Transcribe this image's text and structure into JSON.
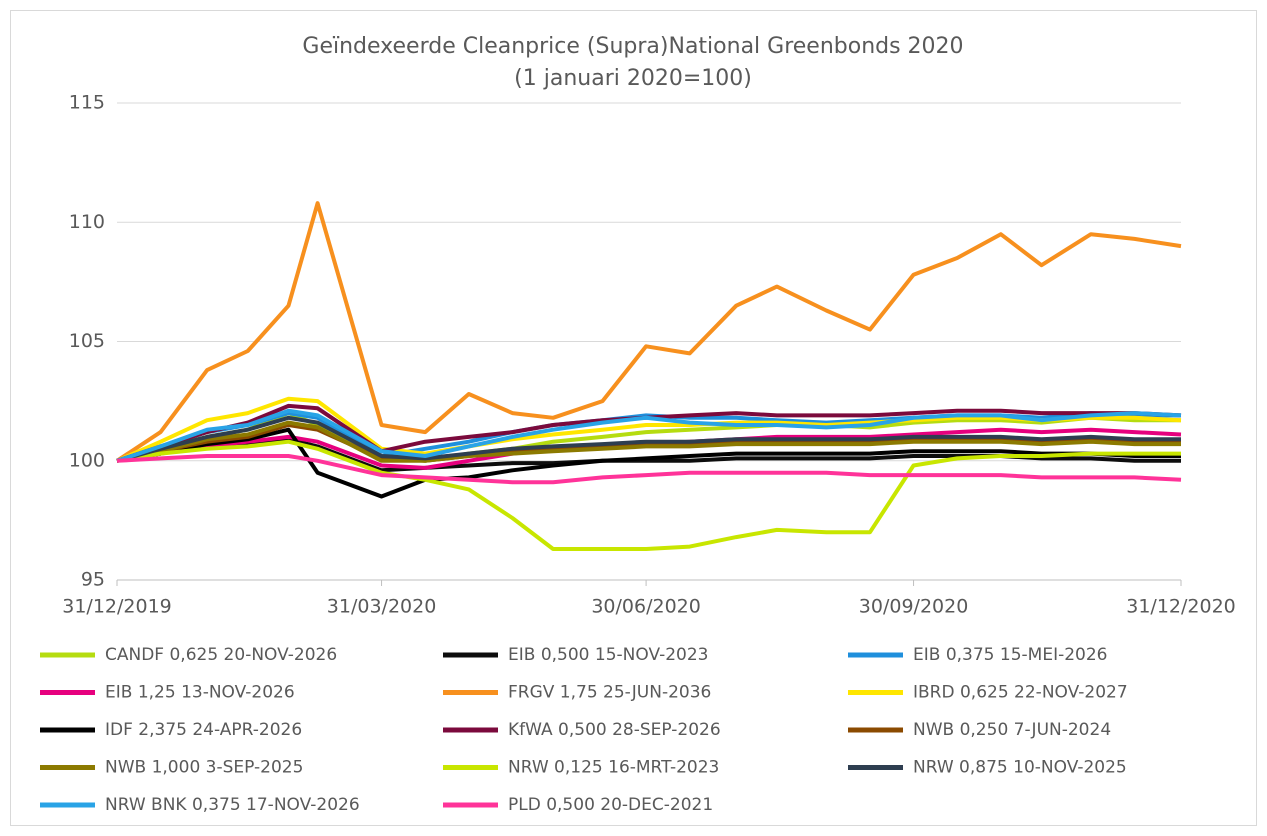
{
  "chart_data": {
    "type": "line",
    "title": "Geïndexeerde Cleanprice (Supra)National Greenbonds 2020",
    "subtitle": "(1 januari 2020=100)",
    "x": [
      "31/12/2019",
      "15/01/2020",
      "31/01/2020",
      "14/02/2020",
      "28/02/2020",
      "09/03/2020",
      "31/03/2020",
      "15/04/2020",
      "30/04/2020",
      "15/05/2020",
      "29/05/2020",
      "15/06/2020",
      "30/06/2020",
      "15/07/2020",
      "31/07/2020",
      "14/08/2020",
      "31/08/2020",
      "15/09/2020",
      "30/09/2020",
      "15/10/2020",
      "30/10/2020",
      "13/11/2020",
      "30/11/2020",
      "15/12/2020",
      "31/12/2020"
    ],
    "xlim": [
      "31/12/2019",
      "31/12/2020"
    ],
    "xticks": [
      "31/12/2019",
      "31/03/2020",
      "30/06/2020",
      "30/09/2020",
      "31/12/2020"
    ],
    "ylim": [
      95,
      115
    ],
    "yticks": [
      95,
      100,
      105,
      110,
      115
    ],
    "grid": true,
    "series": [
      {
        "name": "CANDF 0,625 20-NOV-2026",
        "color": "#b5dc10",
        "values": [
          100,
          100.5,
          101,
          101.3,
          102,
          101.5,
          100.2,
          100,
          100.3,
          100.5,
          100.8,
          101,
          101.2,
          101.3,
          101.4,
          101.5,
          101.5,
          101.4,
          101.6,
          101.7,
          101.7,
          101.6,
          101.8,
          101.7,
          101.7
        ]
      },
      {
        "name": "EIB 0,500 15-NOV-2023",
        "color": "#0d0d0d",
        "values": [
          100,
          100.4,
          100.6,
          100.7,
          100.9,
          100.6,
          99.6,
          99.7,
          99.8,
          99.9,
          99.9,
          100,
          100,
          100,
          100.1,
          100.1,
          100.1,
          100.1,
          100.2,
          100.2,
          100.2,
          100.1,
          100.1,
          100,
          100
        ]
      },
      {
        "name": "EIB 0,375 15-MEI-2026",
        "color": "#1f8fdc",
        "values": [
          100,
          100.6,
          101.2,
          101.5,
          102,
          101.8,
          100.2,
          100.5,
          100.8,
          101.2,
          101.5,
          101.7,
          101.9,
          101.8,
          101.8,
          101.7,
          101.6,
          101.7,
          101.8,
          101.9,
          101.9,
          101.8,
          102,
          101.9,
          101.9
        ]
      },
      {
        "name": "EIB 1,25 13-NOV-2026",
        "color": "#e6007e",
        "values": [
          100,
          100.3,
          100.6,
          100.8,
          101,
          100.8,
          99.8,
          99.7,
          100,
          100.3,
          100.5,
          100.6,
          100.7,
          100.8,
          100.9,
          101,
          101,
          101,
          101.1,
          101.2,
          101.3,
          101.2,
          101.3,
          101.2,
          101.1
        ]
      },
      {
        "name": "FRGV 1,75 25-JUN-2036",
        "color": "#f7901e",
        "values": [
          100,
          101.2,
          103.8,
          104.6,
          106.5,
          110.8,
          101.5,
          101.2,
          102.8,
          102,
          101.8,
          102.5,
          104.8,
          104.5,
          106.5,
          107.3,
          106.3,
          105.5,
          107.8,
          108.5,
          109.5,
          108.2,
          109.5,
          109.3,
          109
        ]
      },
      {
        "name": "IBRD 0,625 22-NOV-2027",
        "color": "#ffe600",
        "values": [
          100,
          100.8,
          101.7,
          102,
          102.6,
          102.5,
          100.5,
          100.3,
          100.6,
          100.9,
          101.1,
          101.3,
          101.5,
          101.5,
          101.6,
          101.6,
          101.5,
          101.6,
          101.7,
          101.8,
          101.8,
          101.7,
          101.8,
          101.8,
          101.7
        ]
      },
      {
        "name": "IDF 2,375 24-APR-2026",
        "color": "#000000",
        "values": [
          100,
          100.3,
          100.7,
          100.9,
          101.3,
          99.5,
          98.5,
          99.2,
          99.3,
          99.6,
          99.8,
          100,
          100.1,
          100.2,
          100.3,
          100.3,
          100.3,
          100.3,
          100.4,
          100.4,
          100.4,
          100.3,
          100.3,
          100.2,
          100.2
        ]
      },
      {
        "name": "KfWA 0,500 28-SEP-2026",
        "color": "#7b0a3c",
        "values": [
          100,
          100.6,
          101.2,
          101.6,
          102.3,
          102.2,
          100.4,
          100.8,
          101,
          101.2,
          101.5,
          101.7,
          101.8,
          101.9,
          102,
          101.9,
          101.9,
          101.9,
          102,
          102.1,
          102.1,
          102,
          102,
          102,
          101.9
        ]
      },
      {
        "name": "NWB 0,250 7-JUN-2024",
        "color": "#8b4a00",
        "values": [
          100,
          100.4,
          100.8,
          101,
          101.5,
          101.3,
          100.1,
          100,
          100.2,
          100.4,
          100.5,
          100.6,
          100.7,
          100.7,
          100.8,
          100.8,
          100.8,
          100.8,
          100.9,
          100.9,
          100.9,
          100.8,
          100.9,
          100.8,
          100.8
        ]
      },
      {
        "name": "NWB 1,000 3-SEP-2025",
        "color": "#8c7a00",
        "values": [
          100,
          100.4,
          100.9,
          101.1,
          101.6,
          101.4,
          100,
          100,
          100.2,
          100.3,
          100.4,
          100.5,
          100.6,
          100.6,
          100.7,
          100.7,
          100.7,
          100.7,
          100.8,
          100.8,
          100.8,
          100.7,
          100.8,
          100.7,
          100.7
        ]
      },
      {
        "name": "NRW 0,125 16-MRT-2023",
        "color": "#c8e600",
        "values": [
          100,
          100.3,
          100.5,
          100.6,
          100.8,
          100.5,
          99.5,
          99.2,
          98.8,
          97.6,
          96.3,
          96.3,
          96.3,
          96.4,
          96.8,
          97.1,
          97,
          97,
          99.8,
          100.1,
          100.2,
          100.2,
          100.3,
          100.3,
          100.3
        ]
      },
      {
        "name": "NRW 0,875 10-NOV-2025",
        "color": "#2e3e50",
        "values": [
          100,
          100.5,
          101,
          101.3,
          101.8,
          101.6,
          100.2,
          100.1,
          100.3,
          100.5,
          100.6,
          100.7,
          100.8,
          100.8,
          100.9,
          100.9,
          100.9,
          100.9,
          101,
          101,
          101,
          100.9,
          101,
          100.9,
          100.9
        ]
      },
      {
        "name": "NRW BNK 0,375 17-NOV-2026",
        "color": "#29a3e6",
        "values": [
          100,
          100.6,
          101.3,
          101.5,
          102.1,
          101.9,
          100.4,
          100.2,
          100.6,
          101,
          101.3,
          101.6,
          101.8,
          101.6,
          101.5,
          101.5,
          101.4,
          101.5,
          101.8,
          101.9,
          101.9,
          101.7,
          101.9,
          102,
          101.9
        ]
      },
      {
        "name": "PLD 0,500 20-DEC-2021",
        "color": "#ff3399",
        "values": [
          100,
          100.1,
          100.2,
          100.2,
          100.2,
          100,
          99.4,
          99.3,
          99.2,
          99.1,
          99.1,
          99.3,
          99.4,
          99.5,
          99.5,
          99.5,
          99.5,
          99.4,
          99.4,
          99.4,
          99.4,
          99.3,
          99.3,
          99.3,
          99.2
        ]
      }
    ]
  }
}
